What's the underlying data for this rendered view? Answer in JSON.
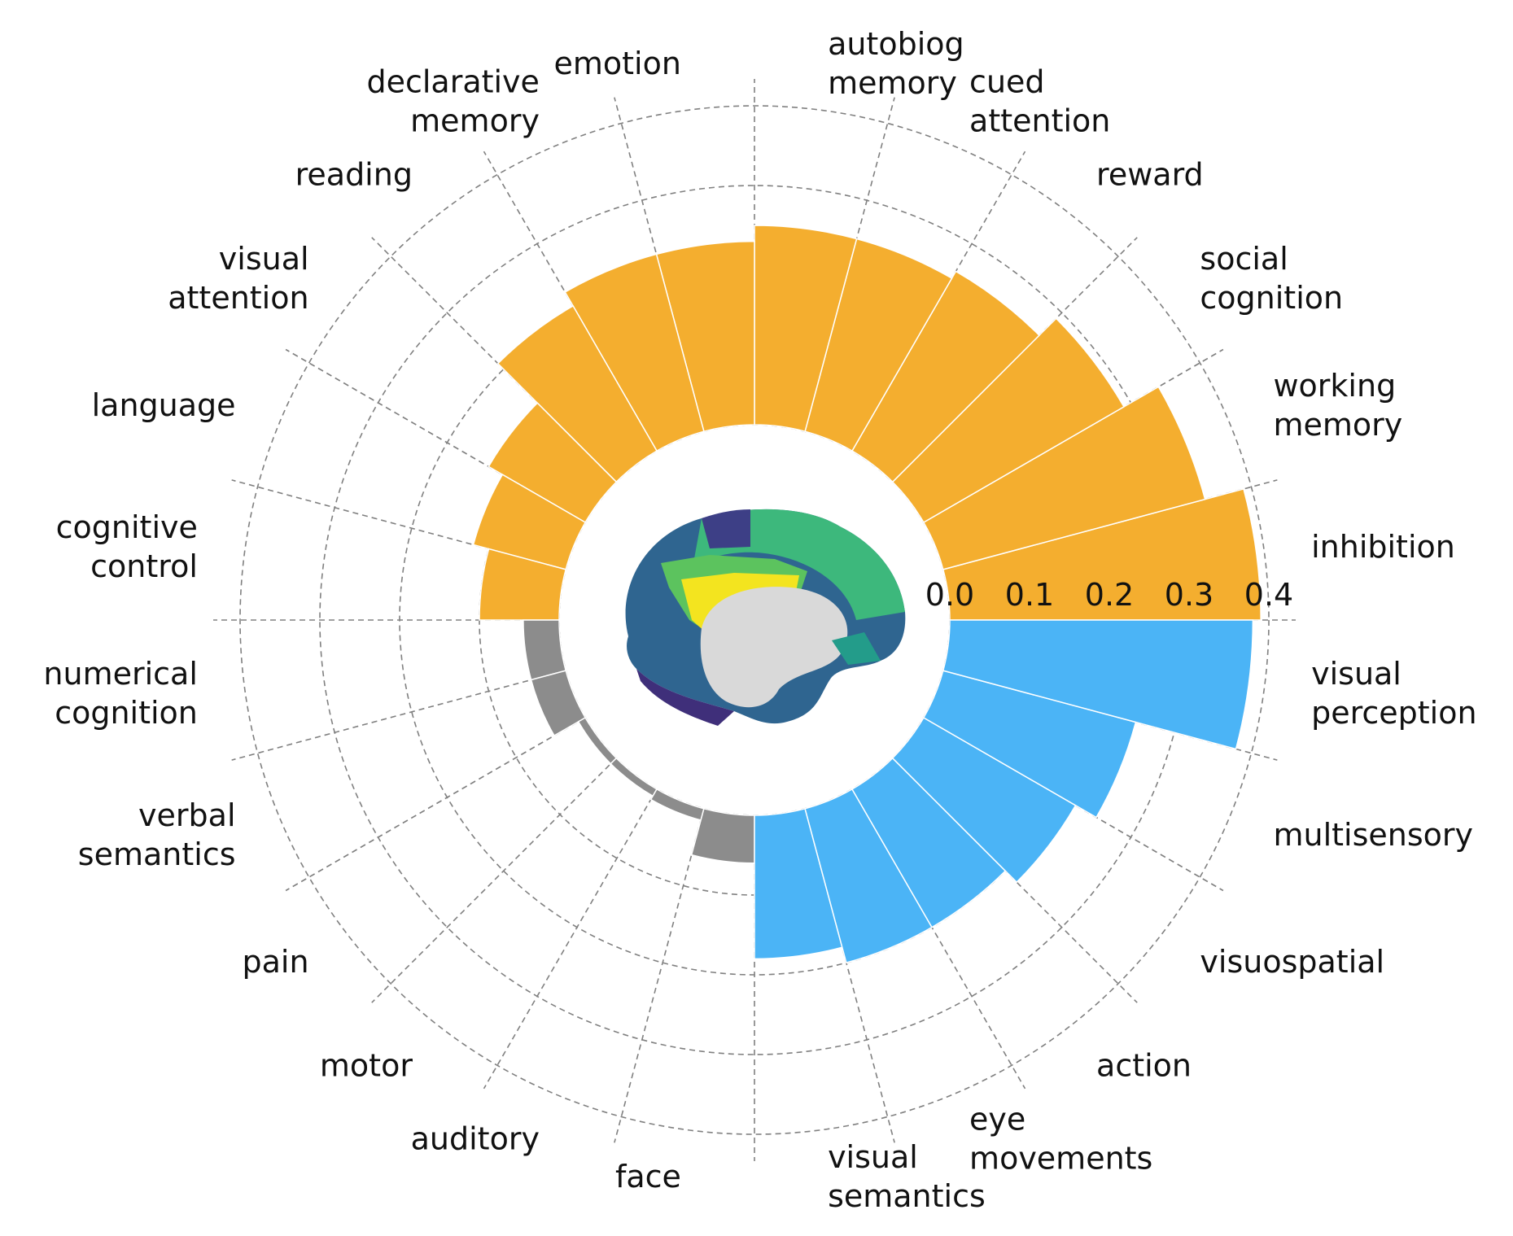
{
  "chart_data": {
    "type": "bar",
    "subtype": "polar",
    "r_ticks": [
      "0.0",
      "0.1",
      "0.2",
      "0.3",
      "0.4"
    ],
    "rlim": [
      0,
      0.4
    ],
    "colors": {
      "positive": "#F4AE2F",
      "negative": "#4BB4F6",
      "neutral": "#8C8C8C",
      "grid": "#808080"
    },
    "categories": [
      {
        "label": [
          "inhibition"
        ],
        "value": 0.39,
        "group": "positive"
      },
      {
        "label": [
          "working",
          "memory"
        ],
        "value": 0.34,
        "group": "positive"
      },
      {
        "label": [
          "social",
          "cognition"
        ],
        "value": 0.29,
        "group": "positive"
      },
      {
        "label": [
          "reward"
        ],
        "value": 0.26,
        "group": "positive"
      },
      {
        "label": [
          "cued",
          "attention"
        ],
        "value": 0.25,
        "group": "positive"
      },
      {
        "label": [
          "autobiog",
          "memory"
        ],
        "value": 0.25,
        "group": "positive"
      },
      {
        "label": [
          "emotion"
        ],
        "value": 0.23,
        "group": "positive"
      },
      {
        "label": [
          "declarative",
          "memory"
        ],
        "value": 0.23,
        "group": "positive"
      },
      {
        "label": [
          "reading"
        ],
        "value": 0.21,
        "group": "positive"
      },
      {
        "label": [
          "visual",
          "attention"
        ],
        "value": 0.14,
        "group": "positive"
      },
      {
        "label": [
          "language"
        ],
        "value": 0.12,
        "group": "positive"
      },
      {
        "label": [
          "cognitive",
          "control"
        ],
        "value": 0.1,
        "group": "positive"
      },
      {
        "label": [
          "numerical",
          "cognition"
        ],
        "value": 0.045,
        "group": "neutral"
      },
      {
        "label": [
          "verbal",
          "semantics"
        ],
        "value": 0.045,
        "group": "neutral"
      },
      {
        "label": [
          "pain"
        ],
        "value": 0.01,
        "group": "neutral"
      },
      {
        "label": [
          "motor"
        ],
        "value": 0.01,
        "group": "neutral"
      },
      {
        "label": [
          "auditory"
        ],
        "value": 0.015,
        "group": "neutral"
      },
      {
        "label": [
          "face"
        ],
        "value": 0.06,
        "group": "neutral"
      },
      {
        "label": [
          "visual",
          "semantics"
        ],
        "value": 0.18,
        "group": "negative"
      },
      {
        "label": [
          "eye",
          "movements"
        ],
        "value": 0.2,
        "group": "negative"
      },
      {
        "label": [
          "action"
        ],
        "value": 0.2,
        "group": "negative"
      },
      {
        "label": [
          "visuospatial"
        ],
        "value": 0.22,
        "group": "negative"
      },
      {
        "label": [
          "multisensory"
        ],
        "value": 0.25,
        "group": "negative"
      },
      {
        "label": [
          "visual",
          "perception"
        ],
        "value": 0.38,
        "group": "negative"
      }
    ]
  },
  "brain_image": {
    "description_icon": "medial-brain-surface-icon"
  }
}
